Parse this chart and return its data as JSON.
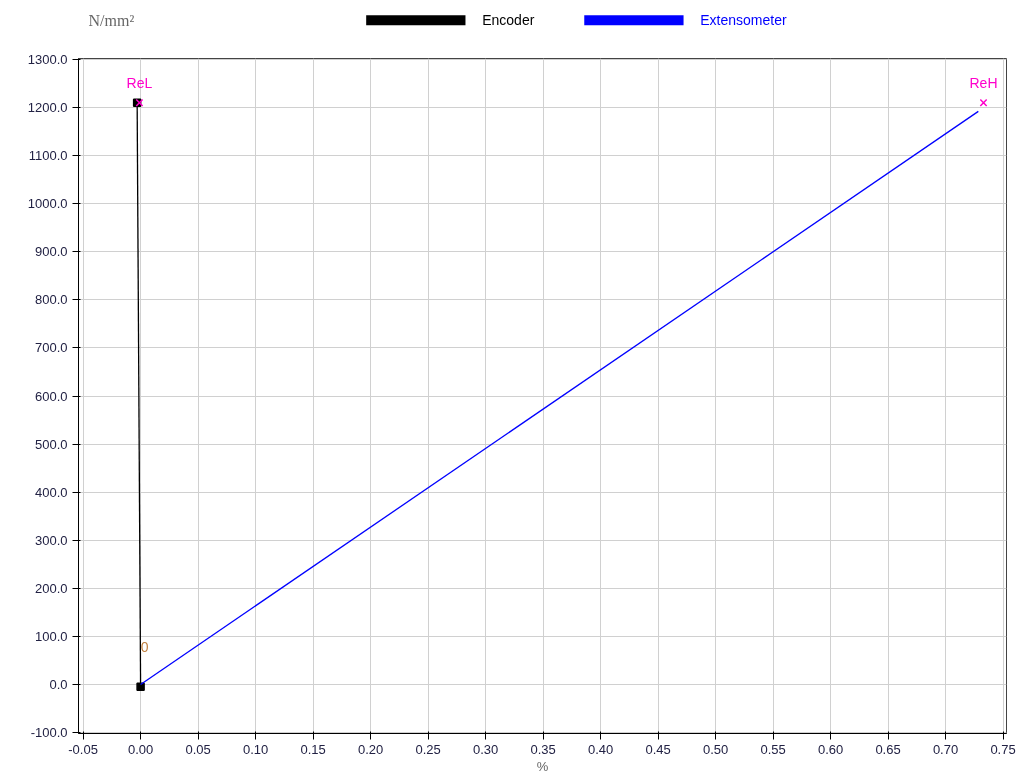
{
  "chart_data": {
    "type": "line",
    "ylabel": "N/mm²",
    "xlabel": "%",
    "xlim": [
      -0.054,
      0.753
    ],
    "ylim": [
      -102,
      1302
    ],
    "xticks": [
      {
        "value": -0.05,
        "label": "-0.05"
      },
      {
        "value": 0,
        "label": "0.00"
      },
      {
        "value": 0.05,
        "label": "0.05"
      },
      {
        "value": 0.1,
        "label": "0.10"
      },
      {
        "value": 0.15,
        "label": "0.15"
      },
      {
        "value": 0.2,
        "label": "0.20"
      },
      {
        "value": 0.25,
        "label": "0.25"
      },
      {
        "value": 0.3,
        "label": "0.30"
      },
      {
        "value": 0.35,
        "label": "0.35"
      },
      {
        "value": 0.4,
        "label": "0.40"
      },
      {
        "value": 0.45,
        "label": "0.45"
      },
      {
        "value": 0.5,
        "label": "0.50"
      },
      {
        "value": 0.55,
        "label": "0.55"
      },
      {
        "value": 0.6,
        "label": "0.60"
      },
      {
        "value": 0.65,
        "label": "0.65"
      },
      {
        "value": 0.7,
        "label": "0.70"
      },
      {
        "value": 0.75,
        "label": "0.75"
      }
    ],
    "yticks": [
      {
        "value": -100,
        "label": "-100.0"
      },
      {
        "value": 0,
        "label": "0.0"
      },
      {
        "value": 100,
        "label": "100.0"
      },
      {
        "value": 200,
        "label": "200.0"
      },
      {
        "value": 300,
        "label": "300.0"
      },
      {
        "value": 400,
        "label": "400.0"
      },
      {
        "value": 500,
        "label": "500.0"
      },
      {
        "value": 600,
        "label": "600.0"
      },
      {
        "value": 700,
        "label": "700.0"
      },
      {
        "value": 800,
        "label": "800.0"
      },
      {
        "value": 900,
        "label": "900.0"
      },
      {
        "value": 1000,
        "label": "1000.0"
      },
      {
        "value": 1100,
        "label": "1100.0"
      },
      {
        "value": 1200,
        "label": "1200.0"
      },
      {
        "value": 1300,
        "label": "1300.0"
      }
    ],
    "grid": true,
    "legend": "top",
    "series": [
      {
        "name": "Encoder",
        "color": "#000000",
        "x": [
          0.0,
          -0.003
        ],
        "values": [
          -5,
          1210
        ],
        "marker": "square"
      },
      {
        "name": "Extensometer",
        "color": "#0000ff",
        "x": [
          0.0,
          0.7285
        ],
        "values": [
          0,
          1192
        ],
        "marker": "none"
      },
      {
        "type": "scatter",
        "color": "#ff00cc",
        "x": [
          -0.001,
          0.733
        ],
        "values": [
          1210,
          1210
        ],
        "marker": "cross"
      }
    ],
    "annotations": [
      {
        "text": "ReL",
        "x": -0.001,
        "y": 1210
      },
      {
        "text": "ReH",
        "x": 0.733,
        "y": 1210
      },
      {
        "text": "0",
        "x": 0.0,
        "y": 80
      }
    ]
  }
}
